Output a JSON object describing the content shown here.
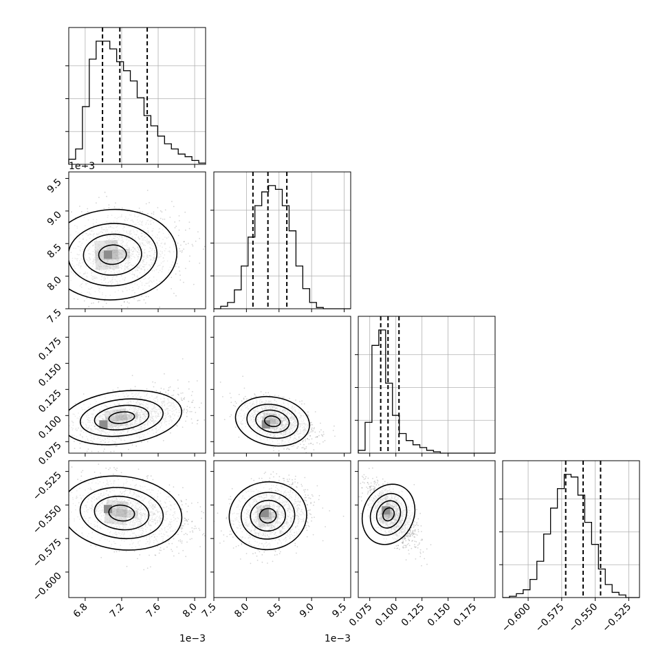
{
  "chart_data": {
    "type": "corner",
    "parameters": [
      {
        "index": 0,
        "range": [
          6.62,
          8.12
        ],
        "axis_offset": "1e−3",
        "ticks": [
          6.8,
          7.2,
          7.6,
          8.0
        ],
        "tick_labels": [
          "6.8",
          "7.2",
          "7.6",
          "8.0"
        ],
        "quantiles": [
          6.99,
          7.18,
          7.48
        ]
      },
      {
        "index": 1,
        "range": [
          7.5,
          9.6
        ],
        "axis_offset": "1e−3",
        "ticks": [
          7.5,
          8.0,
          8.5,
          9.0,
          9.5
        ],
        "tick_labels": [
          "7.5",
          "8.0",
          "8.5",
          "9.0",
          "9.5"
        ],
        "quantiles": [
          8.1,
          8.33,
          8.62
        ]
      },
      {
        "index": 2,
        "range": [
          0.064,
          0.195
        ],
        "axis_offset": "",
        "ticks": [
          0.075,
          0.1,
          0.125,
          0.15,
          0.175
        ],
        "tick_labels": [
          "0.075",
          "0.100",
          "0.125",
          "0.150",
          "0.175"
        ],
        "quantiles": [
          0.0855,
          0.0925,
          0.103
        ]
      },
      {
        "index": 3,
        "range": [
          -0.619,
          -0.517
        ],
        "axis_offset": "",
        "ticks": [
          -0.6,
          -0.575,
          -0.55,
          -0.525
        ],
        "tick_labels": [
          "−0.600",
          "−0.575",
          "−0.550",
          "−0.525"
        ],
        "quantiles": [
          -0.572,
          -0.559,
          -0.546
        ]
      }
    ],
    "histograms": [
      {
        "param": 0,
        "bin_start": 6.62,
        "bin_width": 0.075,
        "counts": [
          0.04,
          0.12,
          0.45,
          0.82,
          0.96,
          0.96,
          0.9,
          0.8,
          0.73,
          0.65,
          0.52,
          0.38,
          0.3,
          0.22,
          0.16,
          0.12,
          0.08,
          0.06,
          0.03,
          0.01
        ]
      },
      {
        "param": 1,
        "bin_start": 7.5,
        "bin_width": 0.105,
        "counts": [
          0.0,
          0.02,
          0.05,
          0.15,
          0.34,
          0.57,
          0.82,
          0.93,
          0.98,
          0.95,
          0.82,
          0.62,
          0.34,
          0.16,
          0.05,
          0.01,
          0.0,
          0.0,
          0.0,
          0.0
        ]
      },
      {
        "param": 2,
        "bin_start": 0.064,
        "bin_width": 0.00655,
        "counts": [
          0.02,
          0.22,
          0.77,
          0.88,
          0.5,
          0.27,
          0.14,
          0.09,
          0.06,
          0.04,
          0.02,
          0.01,
          0.0,
          0.0,
          0.0,
          0.0,
          0.0,
          0.0,
          0.0,
          0.0
        ]
      },
      {
        "param": 3,
        "bin_start": -0.619,
        "bin_width": 0.0051,
        "counts": [
          0.0,
          0.01,
          0.03,
          0.06,
          0.14,
          0.28,
          0.49,
          0.69,
          0.84,
          0.95,
          0.93,
          0.79,
          0.58,
          0.41,
          0.22,
          0.1,
          0.04,
          0.02,
          0.0,
          0.0
        ]
      }
    ],
    "correlations": [
      {
        "x": 0,
        "y": 1,
        "center": [
          7.1,
          8.33
        ],
        "spread": [
          0.32,
          0.33
        ],
        "rho": 0.12,
        "peak": [
          7.05,
          8.33
        ]
      },
      {
        "x": 0,
        "y": 2,
        "center": [
          7.2,
          0.098
        ],
        "spread": [
          0.3,
          0.012
        ],
        "rho": 0.45,
        "peak": [
          7.0,
          0.0915
        ]
      },
      {
        "x": 1,
        "y": 2,
        "center": [
          8.4,
          0.0945
        ],
        "spread": [
          0.26,
          0.011
        ],
        "rho": -0.45,
        "peak": [
          8.3,
          0.0915
        ]
      },
      {
        "x": 0,
        "y": 3,
        "center": [
          7.2,
          -0.556
        ],
        "spread": [
          0.3,
          0.013
        ],
        "rho": -0.3,
        "peak": [
          7.05,
          -0.553
        ]
      },
      {
        "x": 1,
        "y": 3,
        "center": [
          8.33,
          -0.558
        ],
        "spread": [
          0.27,
          0.012
        ],
        "rho": 0.2,
        "peak": [
          8.28,
          -0.556
        ]
      },
      {
        "x": 2,
        "y": 3,
        "center": [
          0.093,
          -0.557
        ],
        "spread": [
          0.011,
          0.011
        ],
        "rho": -0.65,
        "peak": [
          0.0905,
          -0.554
        ]
      }
    ],
    "grid": true,
    "colors": {
      "line": "#000000",
      "scatter": "#808080",
      "grid": "#b0b0b0"
    }
  }
}
